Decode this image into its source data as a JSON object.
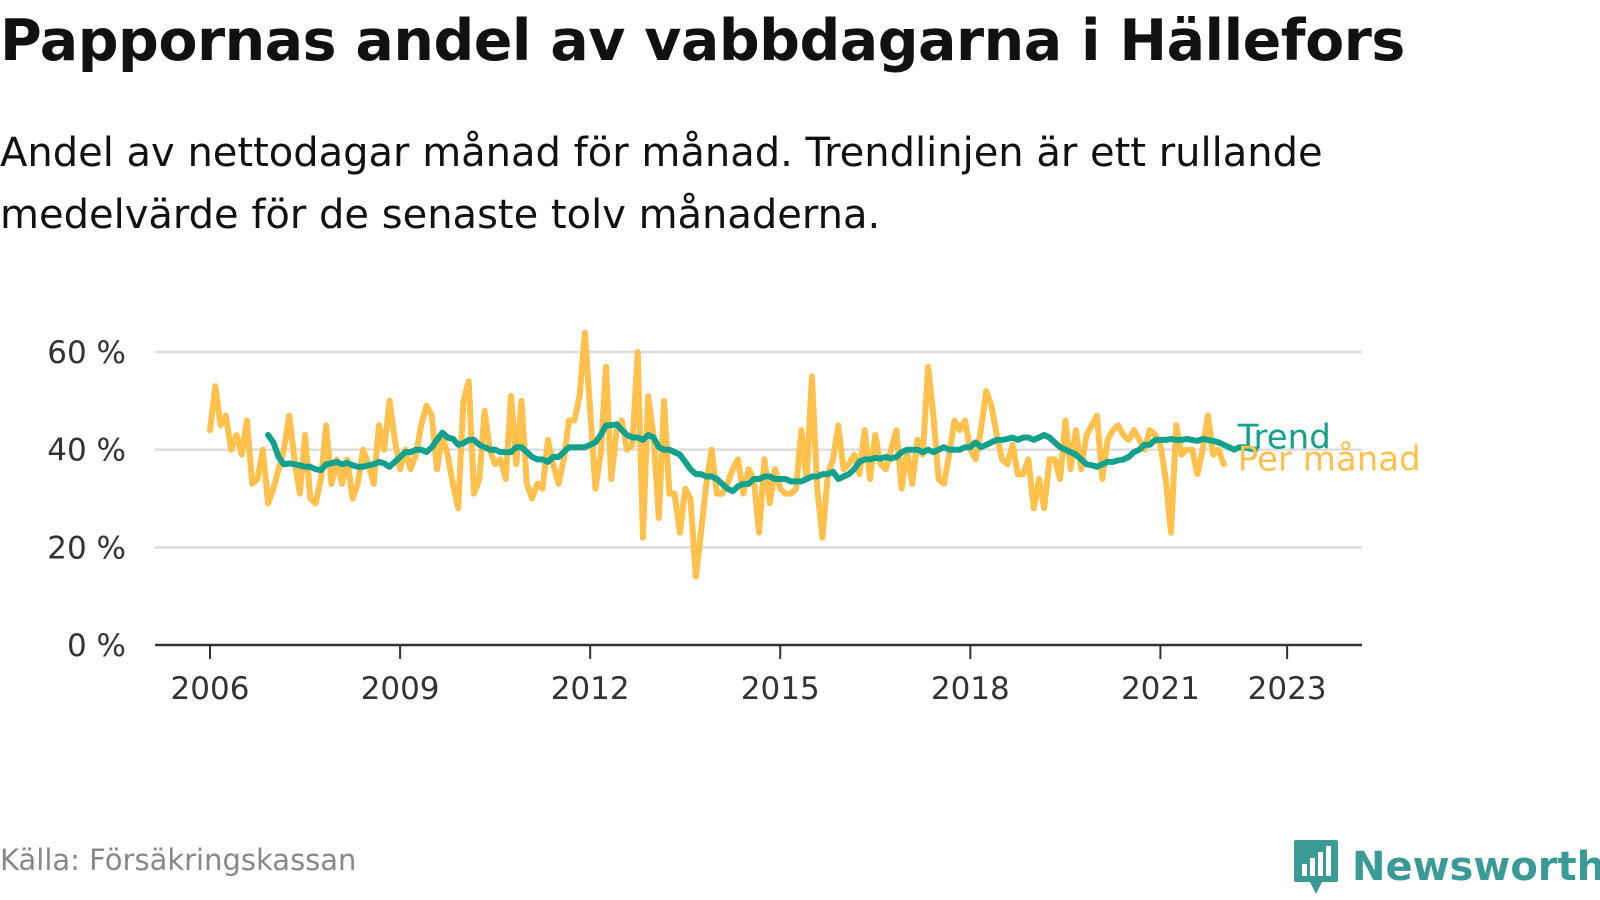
{
  "header": {
    "title": "Pappornas andel av vabbdagarna i Hällefors",
    "subtitle": "Andel av nettodagar månad för månad. Trendlinjen är ett rullande medelvärde för de senaste tolv månaderna."
  },
  "footer": {
    "source": "Källa: Försäkringskassan",
    "brand": "Newsworthy",
    "brand_color": "#3a9a96"
  },
  "chart_data": {
    "type": "line",
    "title": "Pappornas andel av vabbdagarna i Hällefors",
    "x_start": "2006-01",
    "x_ticks": [
      "2006",
      "2009",
      "2012",
      "2015",
      "2018",
      "2021",
      "2023"
    ],
    "y_ticks": [
      "0 %",
      "20 %",
      "40 %",
      "60 %"
    ],
    "ylim": [
      0,
      60
    ],
    "grid": true,
    "series": [
      {
        "name": "Per månad",
        "color": "#ffc04c",
        "values": [
          44,
          53,
          45,
          47,
          40,
          43,
          39,
          46,
          33,
          34,
          40,
          29,
          32,
          36,
          40,
          47,
          38,
          31,
          43,
          30,
          29,
          34,
          45,
          33,
          38,
          33,
          38,
          30,
          33,
          40,
          37,
          33,
          45,
          40,
          50,
          42,
          36,
          40,
          36,
          39,
          45,
          49,
          47,
          36,
          43,
          39,
          33,
          28,
          50,
          54,
          31,
          34,
          48,
          40,
          37,
          38,
          34,
          51,
          37,
          50,
          33,
          30,
          33,
          32,
          42,
          37,
          33,
          38,
          46,
          46,
          51,
          64,
          48,
          32,
          39,
          57,
          34,
          44,
          46,
          40,
          41,
          60,
          22,
          51,
          43,
          26,
          50,
          31,
          31,
          23,
          32,
          30,
          14,
          23,
          33,
          40,
          31,
          31,
          33,
          36,
          38,
          31,
          36,
          34,
          23,
          38,
          29,
          36,
          32,
          31,
          31,
          32,
          44,
          34,
          55,
          32,
          22,
          35,
          38,
          45,
          36,
          37,
          39,
          35,
          44,
          34,
          43,
          37,
          36,
          40,
          44,
          32,
          40,
          33,
          42,
          39,
          57,
          47,
          34,
          33,
          39,
          46,
          44,
          46,
          40,
          38,
          44,
          52,
          49,
          43,
          38,
          37,
          41,
          35,
          35,
          38,
          28,
          34,
          28,
          38,
          38,
          34,
          46,
          36,
          44,
          36,
          43,
          45,
          47,
          34,
          42,
          44,
          45,
          43,
          42,
          44,
          42,
          40,
          44,
          43,
          41,
          34,
          23,
          45,
          39,
          40,
          40,
          35,
          40,
          47,
          39,
          40,
          37
        ]
      },
      {
        "name": "Trend",
        "color": "#12a18c",
        "start_index": 11,
        "values": [
          43,
          41.5,
          38.5,
          37,
          37.2,
          37,
          36.8,
          36.5,
          36.5,
          36,
          35.8,
          37,
          37.2,
          37.5,
          37,
          37.3,
          36.8,
          36.5,
          36.5,
          36.8,
          37,
          37.5,
          37.2,
          36.5,
          37.5,
          38.5,
          39.5,
          39.5,
          40,
          40,
          39.5,
          40.5,
          42,
          43.5,
          42.5,
          42.2,
          41,
          41.3,
          42,
          42,
          41,
          40.5,
          40,
          40,
          39.5,
          39.5,
          39.5,
          40.5,
          40.5,
          39.5,
          38.5,
          38,
          38,
          37.5,
          38.5,
          38.5,
          39.5,
          40.5,
          40.5,
          40.5,
          40.5,
          41,
          41.5,
          43,
          45,
          45,
          45.2,
          44,
          43,
          42.5,
          42.5,
          42,
          43,
          42.5,
          40.5,
          40,
          40,
          39.5,
          39,
          37.5,
          36,
          35,
          35,
          34.5,
          34.5,
          34,
          33,
          32,
          31.5,
          32.5,
          33,
          33,
          34,
          34,
          34.5,
          34.5,
          34,
          34,
          34,
          33.5,
          33.5,
          33.5,
          34,
          34.5,
          34.5,
          35,
          35,
          35.5,
          34,
          34.5,
          35,
          36,
          37.5,
          38,
          38,
          38.3,
          38.2,
          38.5,
          38.2,
          38.5,
          39.5,
          40,
          40,
          40,
          39.5,
          40,
          39.5,
          40,
          40.5,
          40,
          40,
          40,
          40.5,
          40.5,
          41.5,
          40.5,
          41,
          41.5,
          42,
          42,
          42.2,
          42.5,
          42,
          42.5,
          42.5,
          42,
          42.5,
          43,
          42.5,
          41.5,
          40.5,
          40,
          39.5,
          39,
          38,
          37,
          36.8,
          36.5,
          37,
          37.5,
          37.5,
          37.8,
          38,
          38.5,
          39.5,
          40,
          41,
          41,
          42,
          42,
          42,
          42.2,
          42,
          42,
          42.2,
          42,
          41.8,
          42.2,
          42,
          41.8,
          41.5,
          41,
          40.5,
          40,
          40.5,
          40.5,
          40.2,
          40
        ]
      }
    ]
  }
}
